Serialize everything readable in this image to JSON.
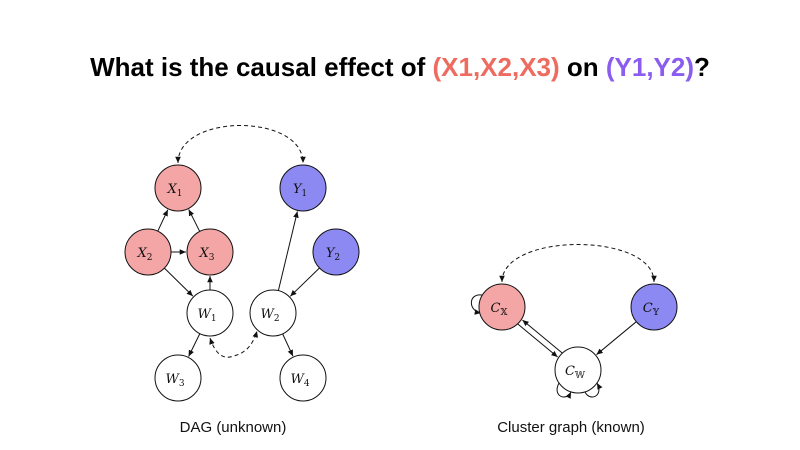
{
  "title": {
    "prefix": "What is the causal effect of ",
    "x_set": "(X1,X2,X3)",
    "middle": " on ",
    "y_set": "(Y1,Y2)",
    "suffix": "?"
  },
  "colors": {
    "x_fill": "#f4a5a5",
    "y_fill": "#8c89f3",
    "w_fill": "#ffffff",
    "x_title": "#ee6b5f",
    "y_title": "#8a5cf0"
  },
  "dag": {
    "caption": "DAG (unknown)",
    "nodes": [
      {
        "id": "X1",
        "base": "X",
        "sub": "1",
        "group": "x"
      },
      {
        "id": "X2",
        "base": "X",
        "sub": "2",
        "group": "x"
      },
      {
        "id": "X3",
        "base": "X",
        "sub": "3",
        "group": "x"
      },
      {
        "id": "Y1",
        "base": "Y",
        "sub": "1",
        "group": "y"
      },
      {
        "id": "Y2",
        "base": "Y",
        "sub": "2",
        "group": "y"
      },
      {
        "id": "W1",
        "base": "W",
        "sub": "1",
        "group": "w"
      },
      {
        "id": "W2",
        "base": "W",
        "sub": "2",
        "group": "w"
      },
      {
        "id": "W3",
        "base": "W",
        "sub": "3",
        "group": "w"
      },
      {
        "id": "W4",
        "base": "W",
        "sub": "4",
        "group": "w"
      }
    ],
    "edges": [
      {
        "from": "X2",
        "to": "X1"
      },
      {
        "from": "X3",
        "to": "X1"
      },
      {
        "from": "X2",
        "to": "X3"
      },
      {
        "from": "X2",
        "to": "W1"
      },
      {
        "from": "W1",
        "to": "X3"
      },
      {
        "from": "W1",
        "to": "W3"
      },
      {
        "from": "W2",
        "to": "Y1"
      },
      {
        "from": "Y2",
        "to": "W2"
      },
      {
        "from": "W2",
        "to": "W4"
      }
    ],
    "bidirected": [
      {
        "a": "X1",
        "b": "Y1"
      },
      {
        "a": "W1",
        "b": "W2"
      }
    ]
  },
  "cluster": {
    "caption": "Cluster graph (known)",
    "nodes": [
      {
        "id": "CX",
        "base": "C",
        "sub": "𝕏",
        "group": "x"
      },
      {
        "id": "CY",
        "base": "C",
        "sub": "𝕐",
        "group": "y"
      },
      {
        "id": "CW",
        "base": "C",
        "sub": "𝕎",
        "group": "w"
      }
    ],
    "edges": [
      {
        "from": "CX",
        "to": "CW"
      },
      {
        "from": "CW",
        "to": "CX"
      },
      {
        "from": "CY",
        "to": "CW"
      }
    ],
    "bidirected": [
      {
        "a": "CX",
        "b": "CY"
      }
    ]
  }
}
